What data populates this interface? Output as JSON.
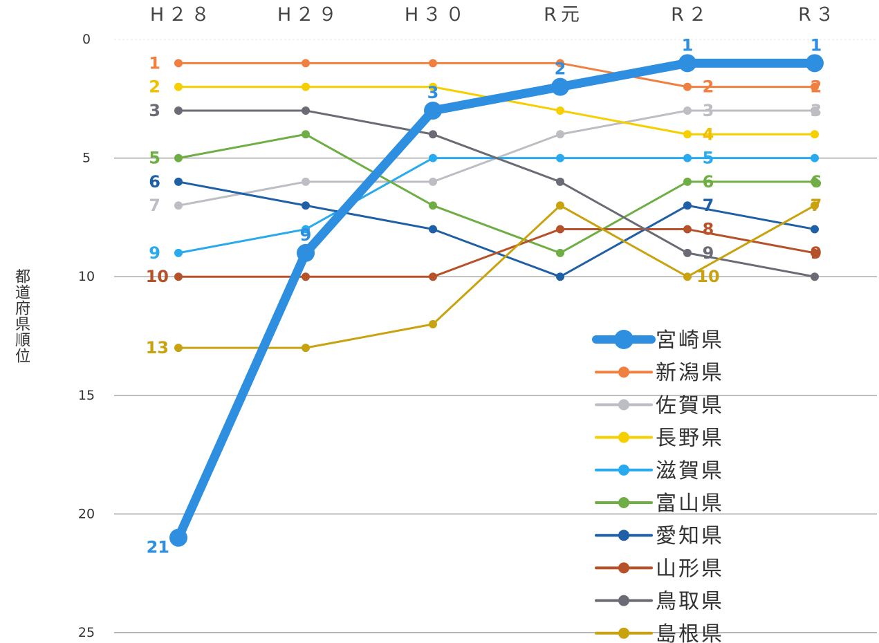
{
  "chart_data": {
    "type": "line",
    "ylabel": "都道府県順位",
    "y_inverted": true,
    "ylim": [
      0,
      25
    ],
    "y_ticks": [
      "0",
      "5",
      "10",
      "15",
      "20",
      "25"
    ],
    "categories": [
      "H２８",
      "H２９",
      "H３０",
      "R元",
      "R２",
      "R３"
    ],
    "grid": true,
    "legend_position": "bottom-right",
    "series": [
      {
        "name": "宮崎県",
        "color": "#2e8fe0",
        "values": [
          21,
          9,
          3,
          2,
          1,
          1
        ],
        "labels": [
          "21",
          "9",
          "3",
          "2",
          "1",
          "1"
        ],
        "emphasis": true
      },
      {
        "name": "新潟県",
        "color": "#f08040",
        "values": [
          1,
          1,
          1,
          1,
          2,
          2
        ],
        "labels": [
          "1",
          "",
          "",
          "",
          "2",
          "2"
        ]
      },
      {
        "name": "佐賀県",
        "color": "#bdbdc4",
        "values": [
          7,
          6,
          6,
          4,
          3,
          3
        ],
        "labels": [
          "7",
          "",
          "",
          "",
          "3",
          "3"
        ]
      },
      {
        "name": "長野県",
        "color": "#f6cf00",
        "values": [
          2,
          2,
          2,
          3,
          4,
          4
        ],
        "labels": [
          "2",
          "",
          "",
          "",
          "4",
          ""
        ]
      },
      {
        "name": "滋賀県",
        "color": "#29a9ee",
        "values": [
          9,
          8,
          5,
          5,
          5,
          5
        ],
        "labels": [
          "9",
          "",
          "",
          "",
          "5",
          ""
        ]
      },
      {
        "name": "富山県",
        "color": "#6fae45",
        "values": [
          5,
          4,
          7,
          9,
          6,
          6
        ],
        "labels": [
          "5",
          "",
          "",
          "",
          "6",
          "6"
        ]
      },
      {
        "name": "愛知県",
        "color": "#1e5fa6",
        "values": [
          6,
          7,
          8,
          10,
          7,
          8
        ],
        "labels": [
          "6",
          "",
          "",
          "",
          "7",
          ""
        ]
      },
      {
        "name": "山形県",
        "color": "#b5522a",
        "values": [
          10,
          10,
          10,
          8,
          8,
          9
        ],
        "labels": [
          "10",
          "",
          "",
          "",
          "8",
          "9"
        ]
      },
      {
        "name": "鳥取県",
        "color": "#6b6b76",
        "values": [
          3,
          3,
          4,
          6,
          9,
          10
        ],
        "labels": [
          "3",
          "",
          "",
          "",
          "9",
          ""
        ]
      },
      {
        "name": "島根県",
        "color": "#c9a20f",
        "values": [
          13,
          13,
          12,
          7,
          10,
          7
        ],
        "labels": [
          "13",
          "",
          "",
          "",
          "10",
          "7"
        ]
      }
    ]
  }
}
